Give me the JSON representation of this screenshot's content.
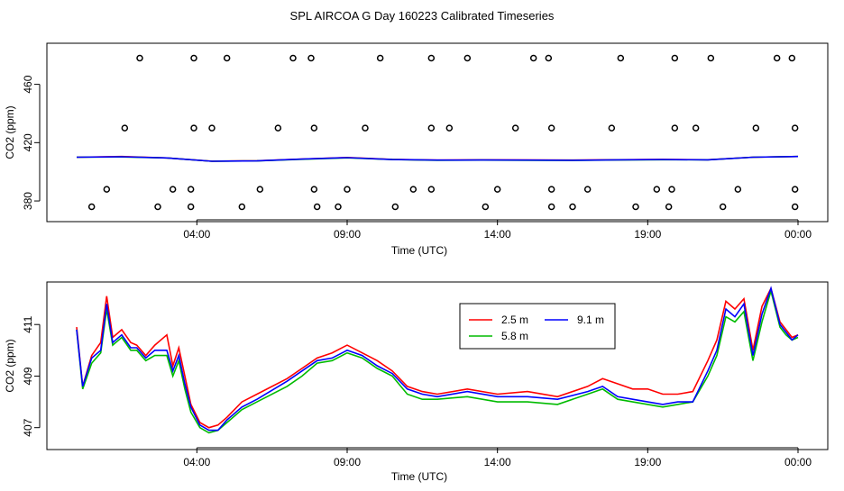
{
  "title": "SPL AIRCOA G  Day 160223  Calibrated Timeseries",
  "chart_data": [
    {
      "type": "scatter",
      "xlabel": "Time (UTC)",
      "ylabel": "CO2 (ppm)",
      "x_ticks": [
        "04:00",
        "09:00",
        "14:00",
        "19:00",
        "00:00"
      ],
      "y_ticks": [
        "380",
        "420",
        "460"
      ],
      "x_range_hours": [
        0,
        24
      ],
      "ylim": [
        372,
        482
      ],
      "grid": false,
      "outlier_points": {
        "x_hours": [
          0.5,
          2.7,
          3.8,
          5.5,
          8.0,
          8.7,
          10.6,
          13.6,
          15.8,
          16.5,
          18.6,
          19.7,
          21.5,
          23.9,
          1.0,
          3.2,
          3.8,
          6.1,
          7.9,
          9.0,
          11.2,
          11.8,
          14.0,
          15.8,
          17.0,
          19.3,
          19.8,
          22.0,
          23.9,
          1.6,
          3.9,
          4.5,
          6.7,
          7.9,
          9.6,
          11.8,
          12.4,
          14.6,
          15.8,
          17.8,
          19.9,
          20.6,
          22.6,
          23.9,
          2.1,
          3.9,
          5.0,
          7.2,
          7.8,
          10.1,
          11.8,
          13.0,
          15.2,
          15.7,
          18.1,
          19.9,
          21.1,
          23.3,
          23.8
        ],
        "y_values": [
          376,
          376,
          376,
          376,
          376,
          376,
          376,
          376,
          376,
          376,
          376,
          376,
          376,
          376,
          388,
          388,
          388,
          388,
          388,
          388,
          388,
          388,
          388,
          388,
          388,
          388,
          388,
          388,
          388,
          430,
          430,
          430,
          430,
          430,
          430,
          430,
          430,
          430,
          430,
          430,
          430,
          430,
          430,
          430,
          478,
          478,
          478,
          478,
          478,
          478,
          478,
          478,
          478,
          478,
          478,
          478,
          478,
          478,
          478
        ]
      },
      "series": [
        {
          "name": "2.5 m",
          "color": "#ff0000",
          "x_hours": [
            0,
            1.5,
            3,
            4.5,
            6,
            7.5,
            9,
            10.5,
            12,
            13.5,
            15,
            16.5,
            18,
            19.5,
            21,
            22.5,
            24
          ],
          "values": [
            410.0,
            410.5,
            409.5,
            407.3,
            407.6,
            408.8,
            409.8,
            408.5,
            408.0,
            408.2,
            408.1,
            408.0,
            408.3,
            408.5,
            408.3,
            410.0,
            410.5
          ]
        },
        {
          "name": "5.8 m",
          "color": "#00bb00",
          "x_hours": [
            0,
            1.5,
            3,
            4.5,
            6,
            7.5,
            9,
            10.5,
            12,
            13.5,
            15,
            16.5,
            18,
            19.5,
            21,
            22.5,
            24
          ],
          "values": [
            410.0,
            410.2,
            409.5,
            407.2,
            407.5,
            408.6,
            409.6,
            408.4,
            407.9,
            408.0,
            407.9,
            407.8,
            408.1,
            408.3,
            408.2,
            410.0,
            410.5
          ]
        },
        {
          "name": "9.1 m",
          "color": "#0000ff",
          "x_hours": [
            0,
            1.5,
            3,
            4.5,
            6,
            7.5,
            9,
            10.5,
            12,
            13.5,
            15,
            16.5,
            18,
            19.5,
            21,
            22.5,
            24
          ],
          "values": [
            410.0,
            410.3,
            409.5,
            407.2,
            407.5,
            408.7,
            409.7,
            408.4,
            408.0,
            408.1,
            408.0,
            407.9,
            408.2,
            408.4,
            408.2,
            410.0,
            410.5
          ]
        }
      ]
    },
    {
      "type": "line",
      "xlabel": "Time (UTC)",
      "ylabel": "CO2 (ppm)",
      "x_ticks": [
        "04:00",
        "09:00",
        "14:00",
        "19:00",
        "00:00"
      ],
      "y_ticks": [
        "407",
        "409",
        "411"
      ],
      "x_range_hours": [
        0,
        24
      ],
      "ylim": [
        406.5,
        412.3
      ],
      "grid": false,
      "legend": {
        "position": "top-center",
        "entries": [
          "2.5 m",
          "5.8 m",
          "9.1 m"
        ]
      },
      "series": [
        {
          "name": "2.5 m",
          "color": "#ff0000",
          "x_hours": [
            0,
            0.2,
            0.5,
            0.8,
            1.0,
            1.2,
            1.5,
            1.8,
            2.0,
            2.3,
            2.6,
            3.0,
            3.2,
            3.4,
            3.6,
            3.8,
            4.1,
            4.4,
            4.7,
            5.0,
            5.5,
            6,
            7,
            7.5,
            8,
            8.5,
            9,
            9.5,
            10,
            10.5,
            11,
            11.5,
            12,
            13,
            14,
            15,
            16,
            17,
            17.5,
            18,
            18.5,
            19,
            19.5,
            20,
            20.5,
            21,
            21.3,
            21.6,
            21.9,
            22.2,
            22.5,
            22.8,
            23.1,
            23.4,
            23.6,
            23.8,
            24
          ],
          "values": [
            410.9,
            408.6,
            409.8,
            410.3,
            412.1,
            410.5,
            410.8,
            410.3,
            410.2,
            409.8,
            410.2,
            410.6,
            409.4,
            410.1,
            409.0,
            407.9,
            407.2,
            407.0,
            407.1,
            407.4,
            408.0,
            408.3,
            408.9,
            409.3,
            409.7,
            409.9,
            410.2,
            409.9,
            409.6,
            409.2,
            408.6,
            408.4,
            408.3,
            408.5,
            408.3,
            408.4,
            408.2,
            408.6,
            408.9,
            408.7,
            408.5,
            408.5,
            408.3,
            408.3,
            408.4,
            409.6,
            410.4,
            411.9,
            411.6,
            412.0,
            410.0,
            411.7,
            412.4,
            411.1,
            410.8,
            410.5,
            410.6
          ]
        },
        {
          "name": "5.8 m",
          "color": "#00bb00",
          "x_hours": [
            0,
            0.2,
            0.5,
            0.8,
            1.0,
            1.2,
            1.5,
            1.8,
            2.0,
            2.3,
            2.6,
            3.0,
            3.2,
            3.4,
            3.6,
            3.8,
            4.1,
            4.4,
            4.7,
            5.0,
            5.5,
            6,
            7,
            7.5,
            8,
            8.5,
            9,
            9.5,
            10,
            10.5,
            11,
            11.5,
            12,
            13,
            14,
            15,
            16,
            17,
            17.5,
            18,
            18.5,
            19,
            19.5,
            20,
            20.5,
            21,
            21.3,
            21.6,
            21.9,
            22.2,
            22.5,
            22.8,
            23.1,
            23.4,
            23.6,
            23.8,
            24
          ],
          "values": [
            410.8,
            408.5,
            409.5,
            409.9,
            411.6,
            410.2,
            410.5,
            410.0,
            410.0,
            409.6,
            409.8,
            409.8,
            409.0,
            409.6,
            408.5,
            407.6,
            407.0,
            406.8,
            406.9,
            407.2,
            407.7,
            408.0,
            408.6,
            409.0,
            409.5,
            409.6,
            409.9,
            409.7,
            409.3,
            409.0,
            408.3,
            408.1,
            408.1,
            408.2,
            408.0,
            408.0,
            407.9,
            408.3,
            408.5,
            408.1,
            408.0,
            407.9,
            407.8,
            407.9,
            408.0,
            409.0,
            409.8,
            411.3,
            411.1,
            411.5,
            409.6,
            411.1,
            412.3,
            410.9,
            410.6,
            410.4,
            410.5
          ]
        },
        {
          "name": "9.1 m",
          "color": "#0000ff",
          "x_hours": [
            0,
            0.2,
            0.5,
            0.8,
            1.0,
            1.2,
            1.5,
            1.8,
            2.0,
            2.3,
            2.6,
            3.0,
            3.2,
            3.4,
            3.6,
            3.8,
            4.1,
            4.4,
            4.7,
            5.0,
            5.5,
            6,
            7,
            7.5,
            8,
            8.5,
            9,
            9.5,
            10,
            10.5,
            11,
            11.5,
            12,
            13,
            14,
            15,
            16,
            17,
            17.5,
            18,
            18.5,
            19,
            19.5,
            20,
            20.5,
            21,
            21.3,
            21.6,
            21.9,
            22.2,
            22.5,
            22.8,
            23.1,
            23.4,
            23.6,
            23.8,
            24
          ],
          "values": [
            410.8,
            408.6,
            409.7,
            410.0,
            411.8,
            410.3,
            410.6,
            410.1,
            410.1,
            409.7,
            410.0,
            410.0,
            409.2,
            409.8,
            408.7,
            407.8,
            407.1,
            406.9,
            406.9,
            407.3,
            407.8,
            408.1,
            408.8,
            409.2,
            409.6,
            409.7,
            410.0,
            409.8,
            409.4,
            409.1,
            408.5,
            408.3,
            408.2,
            408.4,
            408.2,
            408.2,
            408.1,
            408.4,
            408.6,
            408.2,
            408.1,
            408.0,
            407.9,
            408.0,
            408.0,
            409.2,
            410.0,
            411.6,
            411.3,
            411.8,
            409.8,
            411.4,
            412.4,
            411.0,
            410.7,
            410.4,
            410.6
          ]
        }
      ]
    }
  ]
}
